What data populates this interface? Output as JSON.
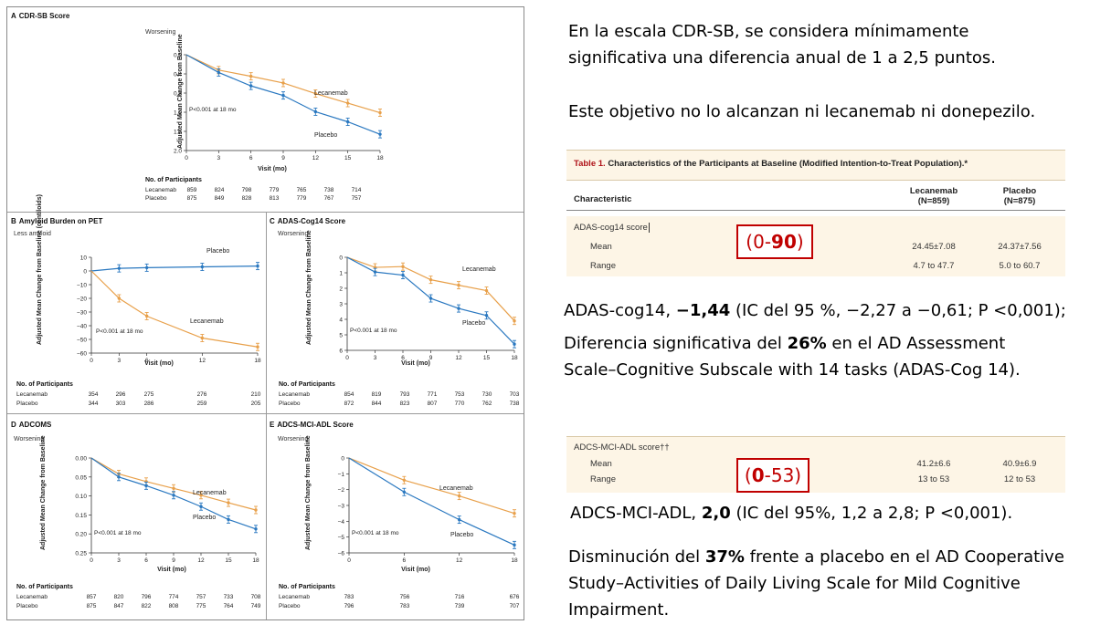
{
  "figure": {
    "panel_a": {
      "letter": "A",
      "title": "CDR-SB Score",
      "direction": "Worsening",
      "ylabel": "Adjusted Mean Change from Baseline",
      "xlabel": "Visit (mo)",
      "pvalue": "P<0.001 at 18 mo",
      "participants_header": "No. of Participants",
      "rows": [
        {
          "name": "Lecanemab",
          "values": [
            "859",
            "824",
            "798",
            "779",
            "765",
            "738",
            "714"
          ]
        },
        {
          "name": "Placebo",
          "values": [
            "875",
            "849",
            "828",
            "813",
            "779",
            "767",
            "757"
          ]
        }
      ]
    },
    "panel_b": {
      "letter": "B",
      "title": "Amyloid Burden on PET",
      "direction": "Less amyloid",
      "ylabel": "Adjusted Mean Change from Baseline (centiloids)",
      "xlabel": "Visit (mo)",
      "pvalue": "P<0.001 at 18 mo",
      "participants_header": "No. of Participants",
      "rows": [
        {
          "name": "Lecanemab",
          "values": [
            "354",
            "296",
            "275",
            "276",
            "210"
          ]
        },
        {
          "name": "Placebo",
          "values": [
            "344",
            "303",
            "286",
            "259",
            "205"
          ]
        }
      ]
    },
    "panel_c": {
      "letter": "C",
      "title": "ADAS-Cog14 Score",
      "direction": "Worsening",
      "ylabel": "Adjusted Mean Change from Baseline",
      "xlabel": "Visit (mo)",
      "pvalue": "P<0.001 at 18 mo",
      "participants_header": "No. of Participants",
      "rows": [
        {
          "name": "Lecanemab",
          "values": [
            "854",
            "819",
            "793",
            "771",
            "753",
            "730",
            "703"
          ]
        },
        {
          "name": "Placebo",
          "values": [
            "872",
            "844",
            "823",
            "807",
            "770",
            "762",
            "738"
          ]
        }
      ]
    },
    "panel_d": {
      "letter": "D",
      "title": "ADCOMS",
      "direction": "Worsening",
      "ylabel": "Adjusted Mean Change from Baseline",
      "xlabel": "Visit (mo)",
      "pvalue": "P<0.001 at 18 mo",
      "participants_header": "No. of Participants",
      "rows": [
        {
          "name": "Lecanemab",
          "values": [
            "857",
            "820",
            "796",
            "774",
            "757",
            "733",
            "708"
          ]
        },
        {
          "name": "Placebo",
          "values": [
            "875",
            "847",
            "822",
            "808",
            "775",
            "764",
            "749"
          ]
        }
      ]
    },
    "panel_e": {
      "letter": "E",
      "title": "ADCS-MCI-ADL Score",
      "direction": "Worsening",
      "ylabel": "Adjusted Mean Change from Baseline",
      "xlabel": "Visit (mo)",
      "pvalue": "P<0.001 at 18 mo",
      "participants_header": "No. of Participants",
      "rows": [
        {
          "name": "Lecanemab",
          "values": [
            "783",
            "756",
            "716",
            "676"
          ]
        },
        {
          "name": "Placebo",
          "values": [
            "796",
            "783",
            "739",
            "707"
          ]
        }
      ]
    }
  },
  "chart_data": [
    {
      "type": "line",
      "title": "CDR-SB Score",
      "xlabel": "Visit (mo)",
      "ylabel": "Adjusted Mean Change from Baseline",
      "x": [
        0,
        3,
        6,
        9,
        12,
        15,
        18
      ],
      "xticks": [
        "0",
        "3",
        "6",
        "9",
        "12",
        "15",
        "18"
      ],
      "ylim": [
        0.0,
        2.0
      ],
      "yinverted": true,
      "yticks": [
        "0.0",
        "0.4",
        "0.8",
        "1.2",
        "1.6",
        "2.0"
      ],
      "series": [
        {
          "name": "Lecanemab",
          "color": "#e8a04a",
          "values": [
            0.0,
            0.32,
            0.45,
            0.59,
            0.81,
            1.01,
            1.21
          ]
        },
        {
          "name": "Placebo",
          "color": "#2a78c0",
          "values": [
            0.0,
            0.37,
            0.65,
            0.85,
            1.19,
            1.4,
            1.66
          ]
        }
      ]
    },
    {
      "type": "line",
      "title": "Amyloid Burden on PET",
      "xlabel": "Visit (mo)",
      "ylabel": "Adjusted Mean Change from Baseline (centiloids)",
      "x": [
        0,
        3,
        6,
        12,
        18
      ],
      "xticks": [
        "0",
        "3",
        "6",
        "12",
        "18"
      ],
      "ylim": [
        -60,
        10
      ],
      "yinverted": false,
      "yticks": [
        "10",
        "0",
        "−10",
        "−20",
        "−30",
        "−40",
        "−50",
        "−60"
      ],
      "series": [
        {
          "name": "Placebo",
          "color": "#2a78c0",
          "values": [
            0,
            1.9,
            2.4,
            3.0,
            3.6
          ]
        },
        {
          "name": "Lecanemab",
          "color": "#e8a04a",
          "values": [
            0,
            -20,
            -33,
            -49,
            -55.5
          ]
        }
      ]
    },
    {
      "type": "line",
      "title": "ADAS-Cog14 Score",
      "xlabel": "Visit (mo)",
      "ylabel": "Adjusted Mean Change from Baseline",
      "x": [
        0,
        3,
        6,
        9,
        12,
        15,
        18
      ],
      "xticks": [
        "0",
        "3",
        "6",
        "9",
        "12",
        "15",
        "18"
      ],
      "ylim": [
        0,
        6
      ],
      "yinverted": true,
      "yticks": [
        "0",
        "1",
        "2",
        "3",
        "4",
        "5",
        "6"
      ],
      "series": [
        {
          "name": "Lecanemab",
          "color": "#e8a04a",
          "values": [
            0,
            0.65,
            0.6,
            1.45,
            1.8,
            2.15,
            4.1
          ]
        },
        {
          "name": "Placebo",
          "color": "#2a78c0",
          "values": [
            0,
            0.95,
            1.15,
            2.65,
            3.3,
            3.75,
            5.6
          ]
        }
      ]
    },
    {
      "type": "line",
      "title": "ADCOMS",
      "xlabel": "Visit (mo)",
      "ylabel": "Adjusted Mean Change from Baseline",
      "x": [
        0,
        3,
        6,
        9,
        12,
        15,
        18
      ],
      "xticks": [
        "0",
        "3",
        "6",
        "9",
        "12",
        "15",
        "18"
      ],
      "ylim": [
        0.0,
        0.25
      ],
      "yinverted": true,
      "yticks": [
        "0.00",
        "0.05",
        "0.10",
        "0.15",
        "0.20",
        "0.25"
      ],
      "series": [
        {
          "name": "Lecanemab",
          "color": "#e8a04a",
          "values": [
            0,
            0.042,
            0.062,
            0.08,
            0.098,
            0.118,
            0.137
          ]
        },
        {
          "name": "Placebo",
          "color": "#2a78c0",
          "values": [
            0,
            0.05,
            0.073,
            0.098,
            0.128,
            0.162,
            0.187
          ]
        }
      ]
    },
    {
      "type": "line",
      "title": "ADCS-MCI-ADL Score",
      "xlabel": "Visit (mo)",
      "ylabel": "Adjusted Mean Change from Baseline",
      "x": [
        0,
        6,
        12,
        18
      ],
      "xticks": [
        "0",
        "6",
        "12",
        "18"
      ],
      "ylim": [
        -6,
        0
      ],
      "yinverted": false,
      "yticks": [
        "0",
        "−1",
        "−2",
        "−3",
        "−4",
        "−5",
        "−6"
      ],
      "series": [
        {
          "name": "Lecanemab",
          "color": "#e8a04a",
          "values": [
            0,
            -1.4,
            -2.4,
            -3.5
          ]
        },
        {
          "name": "Placebo",
          "color": "#2a78c0",
          "values": [
            0,
            -2.15,
            -3.9,
            -5.5
          ]
        }
      ]
    }
  ],
  "right": {
    "intro_line1": "En la escala CDR-SB, se considera mínimamente",
    "intro_line2": "significativa una diferencia anual de 1 a 2,5 puntos.",
    "objective": "Este objetivo no lo alcanzan ni lecanemab ni donepezilo.",
    "table1": {
      "label": "Table 1.",
      "title": "Characteristics of the Participants at Baseline (Modified Intention-to-Treat Population).*",
      "col_characteristic": "Characteristic",
      "col_lecanemab": "Lecanemab",
      "col_lecanemab_n": "(N=859)",
      "col_placebo": "Placebo",
      "col_placebo_n": "(N=875)",
      "row_score": "ADAS-cog14 score",
      "row_mean": "Mean",
      "row_range": "Range",
      "lec_mean": "24.45±7.08",
      "pla_mean": "24.37±7.56",
      "lec_range": "4.7 to 47.7",
      "pla_range": "5.0 to 60.7"
    },
    "adas_box": {
      "open": "(0-",
      "bold": "90",
      "close": ")"
    },
    "adas_result_pre": "ADAS-cog14, ",
    "adas_result_bold": "−1,44",
    "adas_result_post": " (IC del 95 %, −2,27 a −0,61; P <0,001);",
    "adas_desc_pre": "Diferencia significativa del ",
    "adas_desc_bold": "26%",
    "adas_desc_post": " en el AD Assessment",
    "adas_desc_line2": "Scale–Cognitive Subscale with 14 tasks (ADAS-Cog 14).",
    "table2": {
      "row_score": "ADCS-MCI-ADL score††",
      "row_mean": "Mean",
      "row_range": "Range",
      "lec_mean": "41.2±6.6",
      "pla_mean": "40.9±6.9",
      "lec_range": "13 to 53",
      "pla_range": "12 to 53"
    },
    "adcs_box": {
      "open": "(",
      "bold": "0",
      "close": "-53)"
    },
    "adcs_result_pre": "ADCS-MCI-ADL, ",
    "adcs_result_bold": "2,0",
    "adcs_result_post": " (IC del 95%, 1,2 a 2,8; P <0,001).",
    "adcs_desc_pre": "Disminución del ",
    "adcs_desc_bold": "37%",
    "adcs_desc_post": " frente a placebo en el AD Cooperative",
    "adcs_desc_line2": "Study–Activities of Daily Living Scale for Mild Cognitive",
    "adcs_desc_line3": "Impairment."
  }
}
